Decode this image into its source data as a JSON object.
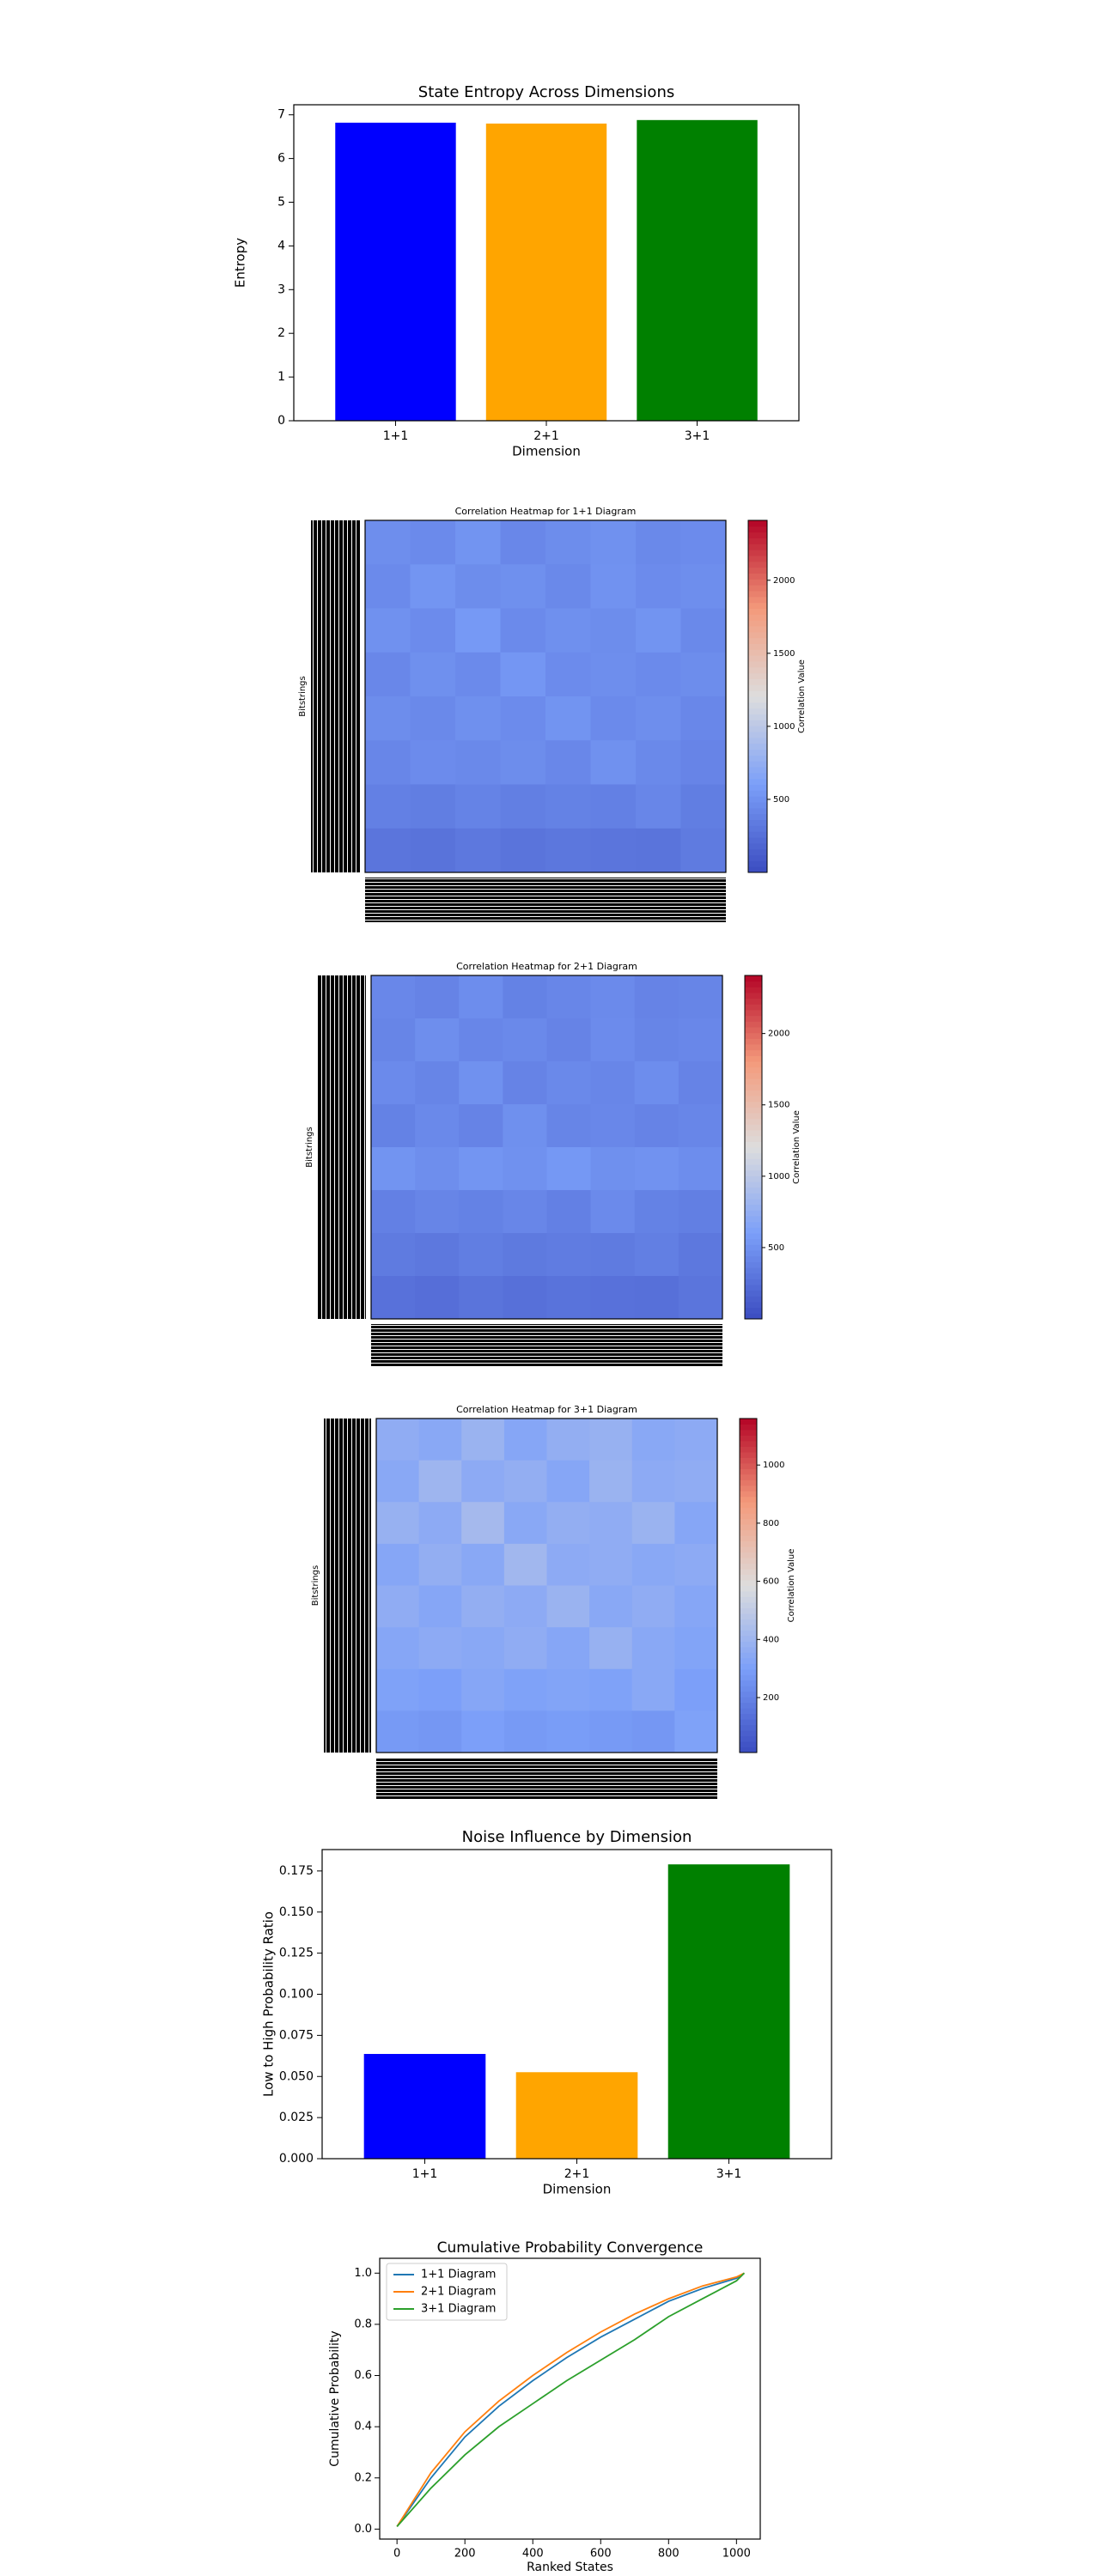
{
  "chart_data": [
    {
      "type": "bar",
      "title": "State Entropy Across Dimensions",
      "xlabel": "Dimension",
      "ylabel": "Entropy",
      "categories": [
        "1+1",
        "2+1",
        "3+1"
      ],
      "values": [
        6.82,
        6.8,
        6.88
      ],
      "colors": [
        "#0000ff",
        "#ffa500",
        "#008000"
      ],
      "ylim": [
        0,
        7.23
      ],
      "yticks": [
        0,
        1,
        2,
        3,
        4,
        5,
        6,
        7
      ]
    },
    {
      "type": "heatmap",
      "title": "Correlation Heatmap for 1+1 Diagram",
      "ylabel": "Bitstrings",
      "colorbar_label": "Correlation Value",
      "colormap": "coolwarm",
      "zlim": [
        0,
        2410
      ],
      "zticks": [
        500,
        1000,
        1500,
        2000
      ],
      "z": [
        [
          480,
          450,
          520,
          430,
          470,
          500,
          440,
          460
        ],
        [
          450,
          530,
          470,
          490,
          440,
          510,
          460,
          480
        ],
        [
          500,
          460,
          560,
          450,
          490,
          470,
          520,
          440
        ],
        [
          430,
          490,
          450,
          540,
          460,
          480,
          450,
          470
        ],
        [
          470,
          440,
          490,
          460,
          520,
          450,
          480,
          430
        ],
        [
          420,
          460,
          440,
          470,
          430,
          500,
          440,
          410
        ],
        [
          380,
          360,
          400,
          370,
          390,
          380,
          420,
          360
        ],
        [
          300,
          280,
          320,
          290,
          310,
          300,
          290,
          340
        ]
      ]
    },
    {
      "type": "heatmap",
      "title": "Correlation Heatmap for 2+1 Diagram",
      "ylabel": "Bitstrings",
      "colorbar_label": "Correlation Value",
      "colormap": "coolwarm",
      "zlim": [
        0,
        2407
      ],
      "zticks": [
        500,
        1000,
        1500,
        2000
      ],
      "z": [
        [
          430,
          400,
          470,
          390,
          420,
          450,
          400,
          410
        ],
        [
          410,
          480,
          420,
          440,
          400,
          460,
          410,
          430
        ],
        [
          450,
          410,
          500,
          400,
          440,
          420,
          470,
          400
        ],
        [
          390,
          440,
          400,
          490,
          410,
          430,
          400,
          420
        ],
        [
          520,
          480,
          530,
          500,
          550,
          490,
          510,
          470
        ],
        [
          380,
          410,
          390,
          420,
          380,
          450,
          390,
          370
        ],
        [
          340,
          320,
          360,
          330,
          350,
          340,
          370,
          320
        ],
        [
          270,
          250,
          290,
          260,
          280,
          270,
          260,
          300
        ]
      ]
    },
    {
      "type": "heatmap",
      "title": "Correlation Heatmap for 3+1 Diagram",
      "ylabel": "Bitstrings",
      "colorbar_label": "Correlation Value",
      "colormap": "coolwarm",
      "zlim": [
        11,
        1160
      ],
      "zticks": [
        200,
        400,
        600,
        800,
        1000
      ],
      "z": [
        [
          360,
          340,
          390,
          330,
          370,
          380,
          340,
          350
        ],
        [
          340,
          400,
          350,
          370,
          330,
          390,
          350,
          360
        ],
        [
          380,
          350,
          420,
          340,
          370,
          360,
          390,
          330
        ],
        [
          330,
          370,
          340,
          410,
          350,
          360,
          340,
          350
        ],
        [
          360,
          330,
          370,
          350,
          390,
          340,
          360,
          330
        ],
        [
          330,
          350,
          340,
          360,
          330,
          380,
          340,
          320
        ],
        [
          310,
          300,
          330,
          310,
          320,
          310,
          340,
          300
        ],
        [
          280,
          270,
          300,
          280,
          290,
          280,
          270,
          310
        ]
      ]
    },
    {
      "type": "bar",
      "title": "Noise Influence by Dimension",
      "xlabel": "Dimension",
      "ylabel": "Low to High Probability Ratio",
      "categories": [
        "1+1",
        "2+1",
        "3+1"
      ],
      "values": [
        0.0637,
        0.0526,
        0.179
      ],
      "colors": [
        "#0000ff",
        "#ffa500",
        "#008000"
      ],
      "ylim": [
        0,
        0.188
      ],
      "yticks": [
        {
          "value": 0,
          "label": "0.000"
        },
        {
          "value": 0.025,
          "label": "0.025"
        },
        {
          "value": 0.05,
          "label": "0.050"
        },
        {
          "value": 0.075,
          "label": "0.075"
        },
        {
          "value": 0.1,
          "label": "0.100"
        },
        {
          "value": 0.125,
          "label": "0.125"
        },
        {
          "value": 0.15,
          "label": "0.150"
        },
        0.175
      ]
    },
    {
      "type": "line",
      "title": "Cumulative Probability Convergence",
      "xlabel": "Ranked States",
      "ylabel": "Cumulative Probability",
      "legend": "upper left",
      "x": [
        0,
        100,
        200,
        300,
        400,
        500,
        600,
        700,
        800,
        900,
        1000,
        1023
      ],
      "series": [
        {
          "name": "1+1 Diagram",
          "color": "#1f77b4",
          "values": [
            0.01,
            0.2,
            0.36,
            0.48,
            0.58,
            0.67,
            0.75,
            0.82,
            0.89,
            0.94,
            0.98,
            1.0
          ]
        },
        {
          "name": "2+1 Diagram",
          "color": "#ff7f0e",
          "values": [
            0.01,
            0.22,
            0.38,
            0.5,
            0.6,
            0.69,
            0.77,
            0.84,
            0.9,
            0.95,
            0.985,
            1.0
          ]
        },
        {
          "name": "3+1 Diagram",
          "color": "#2ca02c",
          "values": [
            0.01,
            0.16,
            0.29,
            0.4,
            0.49,
            0.58,
            0.66,
            0.74,
            0.83,
            0.9,
            0.97,
            1.0
          ]
        }
      ],
      "xlim": [
        -51,
        1070
      ],
      "xticks": [
        0,
        200,
        400,
        600,
        800,
        1000
      ],
      "ylim": [
        -0.039,
        1.058
      ],
      "yticks": [
        {
          "value": 0,
          "label": "0.0"
        },
        {
          "value": 0.2,
          "label": "0.2"
        },
        {
          "value": 0.4,
          "label": "0.4"
        },
        {
          "value": 0.6,
          "label": "0.6"
        },
        {
          "value": 0.8,
          "label": "0.8"
        },
        {
          "value": 1,
          "label": "1.0"
        }
      ]
    }
  ]
}
